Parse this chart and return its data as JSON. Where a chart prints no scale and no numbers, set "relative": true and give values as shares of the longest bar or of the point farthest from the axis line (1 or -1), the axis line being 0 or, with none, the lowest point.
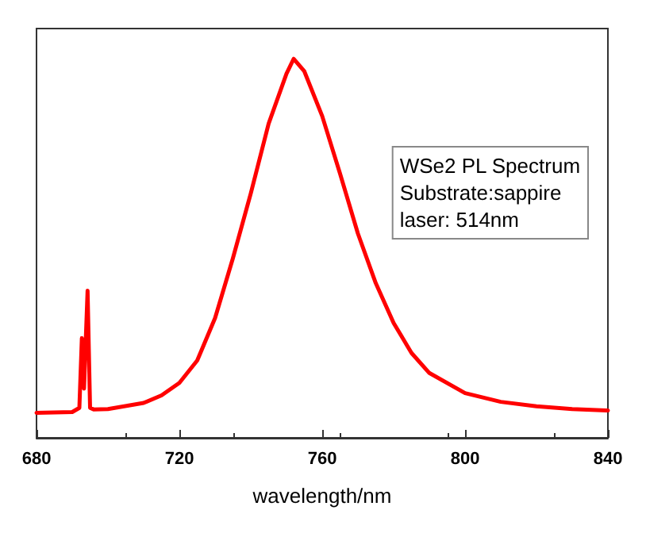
{
  "chart_data": {
    "type": "line",
    "relative": true,
    "xlabel": "wavelength/nm",
    "xlim": [
      680,
      840
    ],
    "xticks": [
      680,
      720,
      760,
      800,
      840
    ],
    "tick_labels": "x",
    "grid": false,
    "marker": "none",
    "line_style": "solid",
    "annotations": [
      "WSe2 PL Spectrum\nSubstrate:sappire\nlaser: 514nm"
    ],
    "series": [
      {
        "color": "#ff0000",
        "x": [
          680,
          690,
          692,
          692.7,
          693.3,
          694.3,
          695,
          696,
          700,
          710,
          715,
          720,
          725,
          730,
          735,
          740,
          745,
          750,
          752,
          755,
          760,
          765,
          770,
          775,
          780,
          785,
          790,
          800,
          810,
          820,
          830,
          840
        ],
        "values": [
          0.066,
          0.068,
          0.079,
          0.263,
          0.13,
          0.388,
          0.079,
          0.075,
          0.076,
          0.092,
          0.112,
          0.145,
          0.204,
          0.316,
          0.474,
          0.645,
          0.829,
          0.961,
          1.0,
          0.967,
          0.849,
          0.697,
          0.539,
          0.408,
          0.303,
          0.224,
          0.171,
          0.118,
          0.095,
          0.083,
          0.076,
          0.072
        ]
      }
    ]
  }
}
